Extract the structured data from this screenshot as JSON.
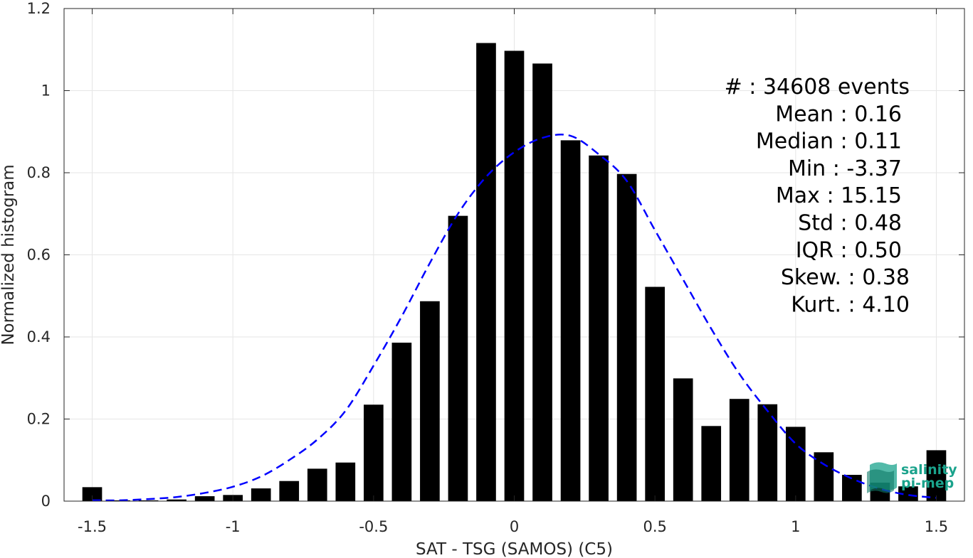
{
  "chart_data": {
    "type": "bar",
    "xlabel": "SAT - TSG (SAMOS) (C5)",
    "ylabel": "Normalized histogram",
    "xlim": [
      -1.6,
      1.6
    ],
    "ylim": [
      0,
      1.2
    ],
    "grid": true,
    "xticks": [
      -1.5,
      -1,
      -0.5,
      0,
      0.5,
      1,
      1.5
    ],
    "xtick_labels": [
      "-1.5",
      "-1",
      "-0.5",
      "0",
      "0.5",
      "1",
      "1.5"
    ],
    "yticks": [
      0,
      0.2,
      0.4,
      0.6,
      0.8,
      1,
      1.2
    ],
    "ytick_labels": [
      "0",
      "0.2",
      "0.4",
      "0.6",
      "0.8",
      "1",
      "1.2"
    ],
    "bar_color": "#000000",
    "bin_centers": [
      -1.5,
      -1.4,
      -1.3,
      -1.2,
      -1.1,
      -1.0,
      -0.9,
      -0.8,
      -0.7,
      -0.6,
      -0.5,
      -0.4,
      -0.3,
      -0.2,
      -0.1,
      0.0,
      0.1,
      0.2,
      0.3,
      0.4,
      0.5,
      0.6,
      0.7,
      0.8,
      0.9,
      1.0,
      1.1,
      1.2,
      1.3,
      1.4,
      1.5
    ],
    "values": [
      0.034,
      0.002,
      0.002,
      0.004,
      0.012,
      0.015,
      0.031,
      0.049,
      0.079,
      0.094,
      0.235,
      0.386,
      0.487,
      0.695,
      1.116,
      1.097,
      1.066,
      0.879,
      0.842,
      0.797,
      0.522,
      0.299,
      0.183,
      0.249,
      0.236,
      0.181,
      0.119,
      0.064,
      0.045,
      0.036,
      0.124
    ],
    "fit": {
      "type": "normal",
      "color": "#0000ff",
      "style": "dashed",
      "x": [
        -1.5,
        -1.4,
        -1.3,
        -1.2,
        -1.1,
        -1.0,
        -0.9,
        -0.8,
        -0.7,
        -0.6,
        -0.5,
        -0.4,
        -0.3,
        -0.2,
        -0.1,
        0.0,
        0.1,
        0.2,
        0.3,
        0.4,
        0.5,
        0.6,
        0.7,
        0.8,
        0.9,
        1.0,
        1.1,
        1.2,
        1.3,
        1.4,
        1.5
      ],
      "y": [
        0.002,
        0.002,
        0.005,
        0.01,
        0.02,
        0.035,
        0.06,
        0.1,
        0.15,
        0.22,
        0.33,
        0.45,
        0.58,
        0.7,
        0.79,
        0.85,
        0.885,
        0.89,
        0.845,
        0.78,
        0.66,
        0.54,
        0.42,
        0.31,
        0.22,
        0.14,
        0.09,
        0.055,
        0.03,
        0.015,
        0.008
      ]
    },
    "annotations": [
      "#  : 34608 events",
      "Mean : 0.16",
      "Median : 0.11",
      "Min : -3.37",
      "Max : 15.15",
      "Std : 0.48",
      "IQR : 0.50",
      "Skew. : 0.38",
      "Kurt. : 4.10"
    ]
  },
  "logo": {
    "line1": "salinity",
    "line2": "pi-mep",
    "color": "#1aa38c"
  }
}
